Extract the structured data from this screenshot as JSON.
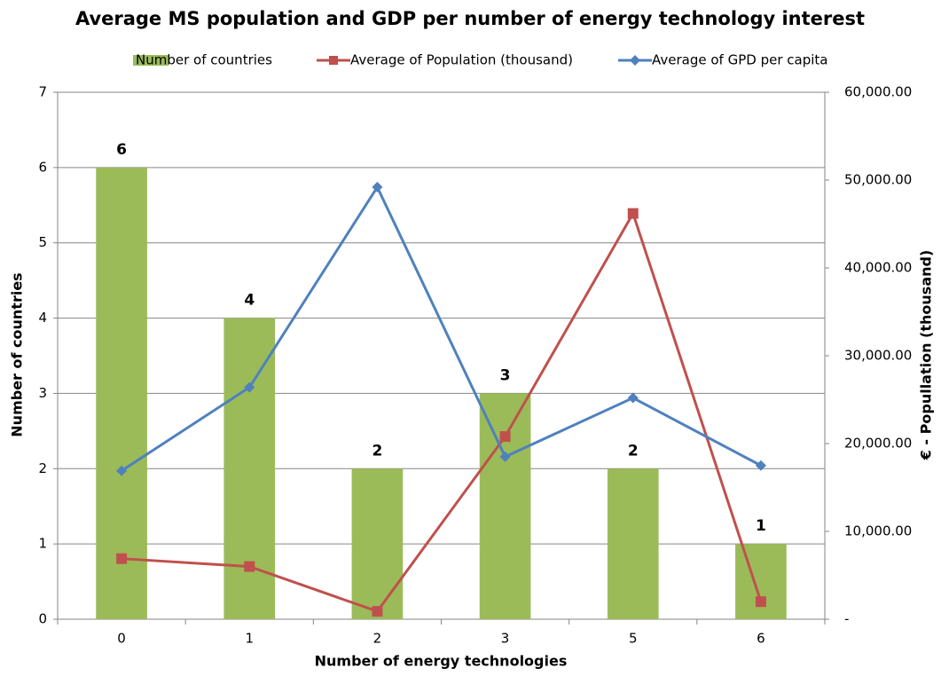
{
  "chart_data": {
    "type": "bar_line",
    "title": "Average MS population and GDP per number of energy technology interest",
    "x_label": "Number of energy technologies",
    "y_label": "Number of countries",
    "y2_label": "€ - Popullation (thousand)",
    "categories": [
      "0",
      "1",
      "2",
      "3",
      "5",
      "6"
    ],
    "series": [
      {
        "name": "Number of countries",
        "type": "bar",
        "color": "#9bbb59",
        "values": [
          6,
          4,
          2,
          3,
          2,
          1
        ]
      },
      {
        "name": "Average of Population (thousand)",
        "type": "line",
        "axis": "y2",
        "color": "#c0504d",
        "marker": "square",
        "values": [
          6900,
          6000,
          900,
          20800,
          46200,
          2000
        ]
      },
      {
        "name": "Average of GPD per capita",
        "type": "line",
        "axis": "y2",
        "color": "#4f81bd",
        "marker": "diamond",
        "values": [
          16900,
          26400,
          49200,
          18500,
          25200,
          17500
        ]
      }
    ],
    "ylim": [
      0,
      7
    ],
    "yticks": [
      0,
      1,
      2,
      3,
      4,
      5,
      6,
      7
    ],
    "y2lim": [
      0,
      60000
    ],
    "y2ticks": [
      {
        "value": 0,
        "label": "-"
      },
      {
        "value": 10000,
        "label": "10,000.00"
      },
      {
        "value": 20000,
        "label": "20,000.00"
      },
      {
        "value": 30000,
        "label": "30,000.00"
      },
      {
        "value": 40000,
        "label": "40,000.00"
      },
      {
        "value": 50000,
        "label": "50,000.00"
      },
      {
        "value": 60000,
        "label": "60,000.00"
      }
    ],
    "grid": true,
    "legend": "top"
  }
}
